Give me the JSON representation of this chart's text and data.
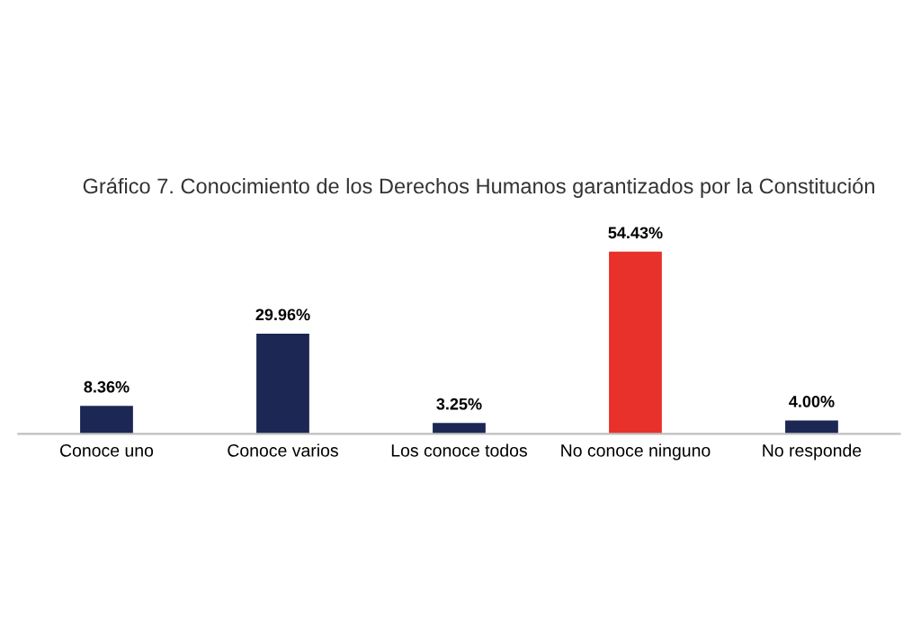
{
  "chart_data": {
    "type": "bar",
    "title": "Gráfico 7. Conocimiento de los Derechos Humanos garantizados por la Constitución",
    "categories": [
      "Conoce uno",
      "Conoce varios",
      "Los conoce todos",
      "No conoce ninguno",
      "No responde"
    ],
    "values": [
      8.36,
      29.96,
      3.25,
      54.43,
      4.0
    ],
    "colors": [
      "#1c2754",
      "#1c2754",
      "#1c2754",
      "#e8312a",
      "#1c2754"
    ],
    "value_labels": [
      "8.36%",
      "29.96%",
      "3.25%",
      "54.43%",
      "4.00%"
    ],
    "grid": false,
    "legend": false
  }
}
